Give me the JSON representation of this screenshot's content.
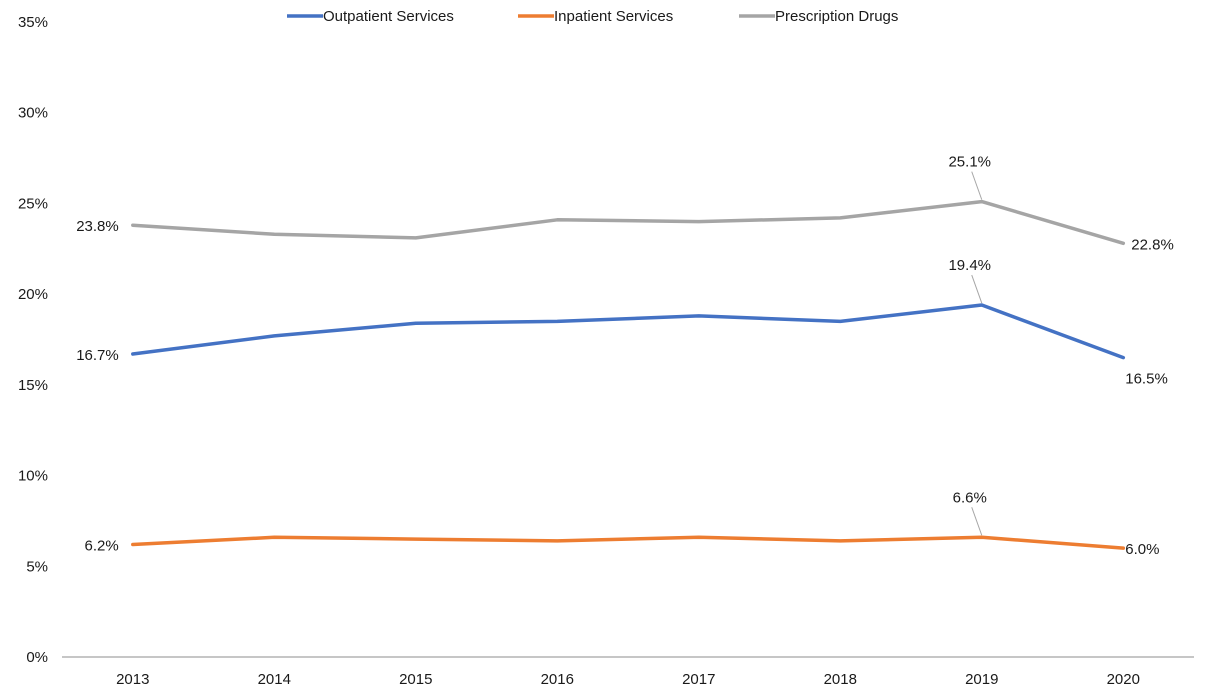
{
  "chart_data": {
    "type": "line",
    "title": "",
    "xlabel": "",
    "ylabel": "",
    "categories": [
      "2013",
      "2014",
      "2015",
      "2016",
      "2017",
      "2018",
      "2019",
      "2020"
    ],
    "ylim": [
      0,
      35
    ],
    "yticks": [
      0,
      5,
      10,
      15,
      20,
      25,
      30,
      35
    ],
    "ytick_labels": [
      "0%",
      "5%",
      "10%",
      "15%",
      "20%",
      "25%",
      "30%",
      "35%"
    ],
    "grid": false,
    "legend_position": "top",
    "series": [
      {
        "name": "Outpatient Services",
        "color": "#4472C4",
        "values": [
          16.7,
          17.7,
          18.4,
          18.5,
          18.8,
          18.5,
          19.4,
          16.5
        ],
        "labels": [
          {
            "index": 0,
            "text": "16.7%"
          },
          {
            "index": 6,
            "text": "19.4%"
          },
          {
            "index": 7,
            "text": "16.5%"
          }
        ]
      },
      {
        "name": "Inpatient Services",
        "color": "#ED7D31",
        "values": [
          6.2,
          6.6,
          6.5,
          6.4,
          6.6,
          6.4,
          6.6,
          6.0
        ],
        "labels": [
          {
            "index": 0,
            "text": "6.2%"
          },
          {
            "index": 6,
            "text": "6.6%"
          },
          {
            "index": 7,
            "text": "6.0%"
          }
        ]
      },
      {
        "name": "Prescription Drugs",
        "color": "#A5A5A5",
        "values": [
          23.8,
          23.3,
          23.1,
          24.1,
          24.0,
          24.2,
          25.1,
          22.8
        ],
        "labels": [
          {
            "index": 0,
            "text": "23.8%"
          },
          {
            "index": 6,
            "text": "25.1%"
          },
          {
            "index": 7,
            "text": "22.8%"
          }
        ]
      }
    ]
  }
}
